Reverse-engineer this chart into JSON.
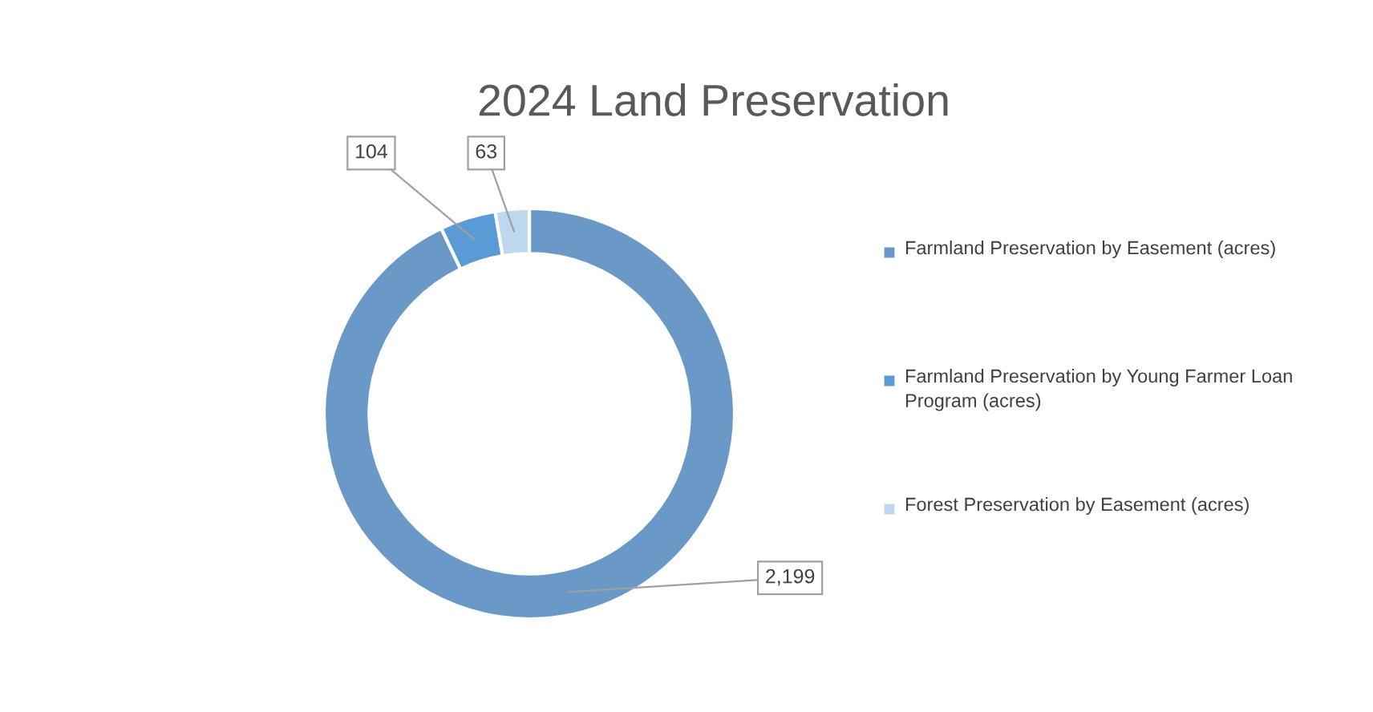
{
  "chart_data": {
    "type": "donut",
    "title": "2024 Land Preservation",
    "categories": [
      "Farmland Preservation by Easement (acres)",
      "Farmland Preservation by Young Farmer Loan Program (acres)",
      "Forest Preservation by Easement (acres)"
    ],
    "values": [
      2199,
      104,
      63
    ],
    "colors": [
      "#6a99c8",
      "#5b9bd5",
      "#bdd7ee"
    ],
    "value_labels": [
      "2,199",
      "104",
      "63"
    ],
    "legend": "right"
  }
}
